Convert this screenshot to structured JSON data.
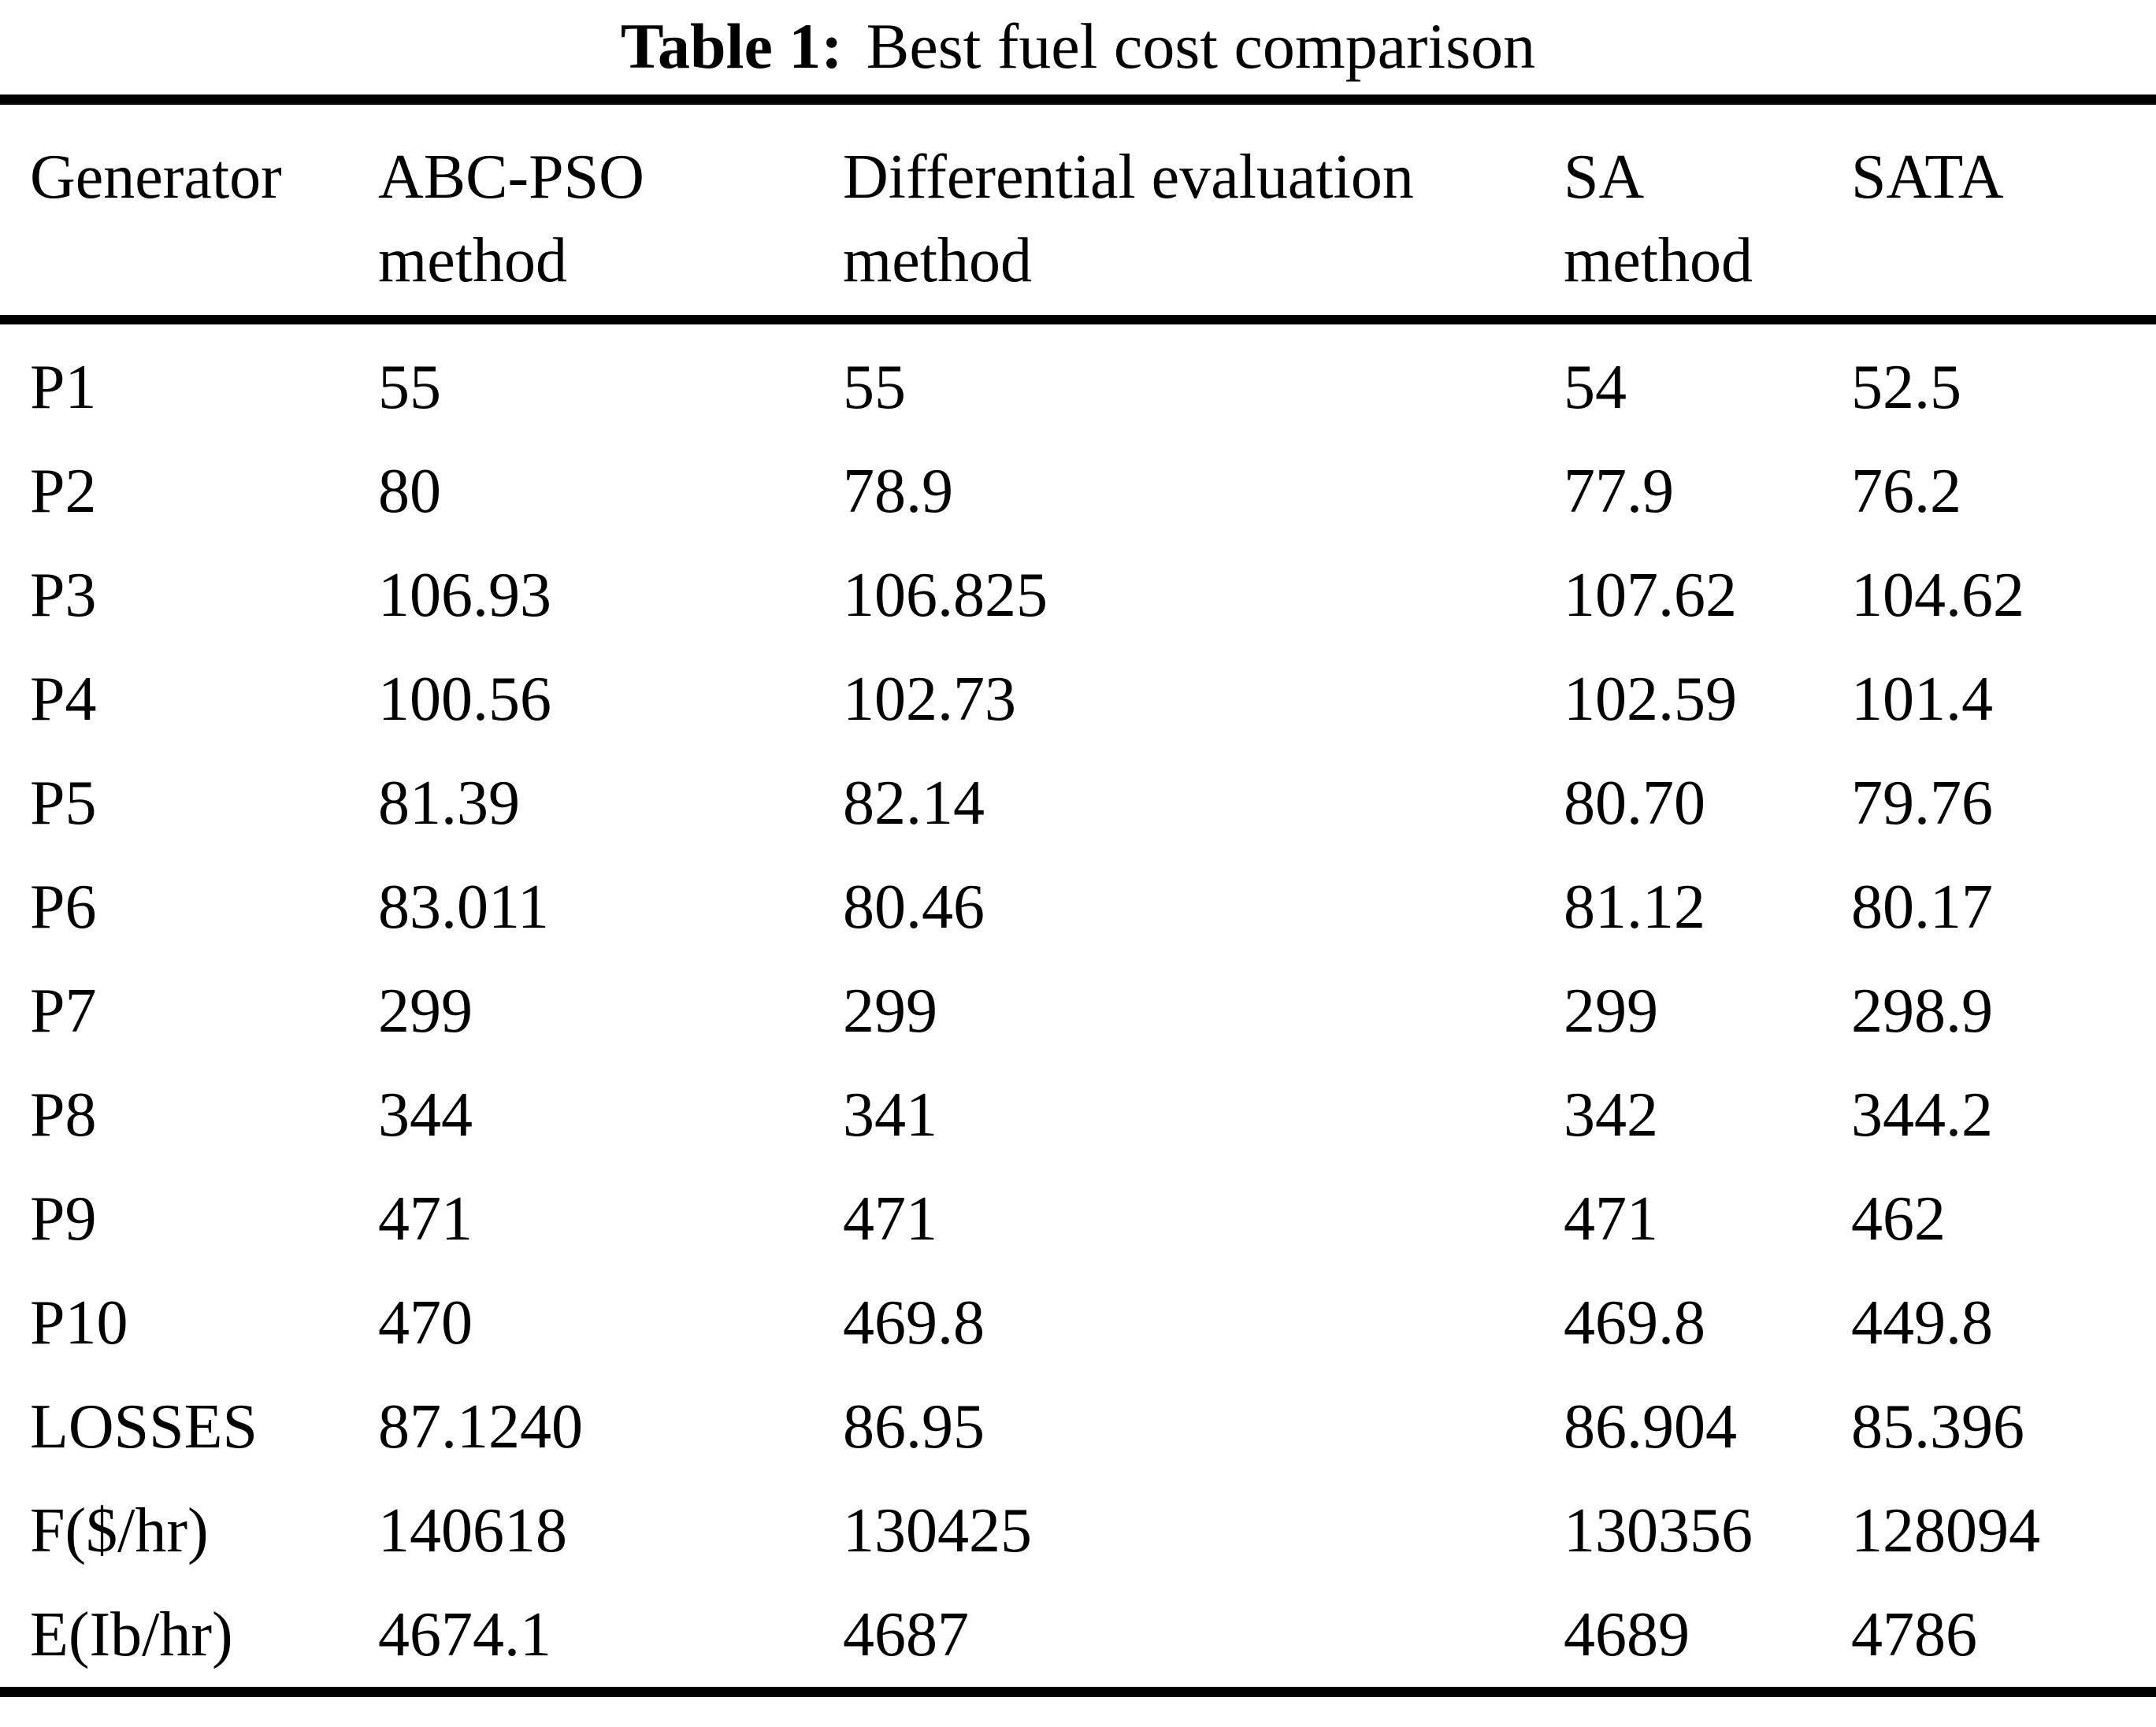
{
  "title": {
    "label": "Table 1:",
    "caption": "Best fuel cost comparison"
  },
  "table": {
    "headers": [
      {
        "line1": "Generator",
        "line2": ""
      },
      {
        "line1": "ABC-PSO",
        "line2": "method"
      },
      {
        "line1": "Differential evaluation",
        "line2": "method"
      },
      {
        "line1": "SA",
        "line2": "method"
      },
      {
        "line1": "SATA",
        "line2": ""
      }
    ],
    "rows": [
      {
        "label": "P1",
        "values": [
          "55",
          "55",
          "54",
          "52.5"
        ]
      },
      {
        "label": "P2",
        "values": [
          "80",
          "78.9",
          "77.9",
          "76.2"
        ]
      },
      {
        "label": "P3",
        "values": [
          "106.93",
          "106.825",
          "107.62",
          "104.62"
        ]
      },
      {
        "label": "P4",
        "values": [
          "100.56",
          "102.73",
          "102.59",
          "101.4"
        ]
      },
      {
        "label": "P5",
        "values": [
          "81.39",
          "82.14",
          "80.70",
          "79.76"
        ]
      },
      {
        "label": "P6",
        "values": [
          "83.011",
          "80.46",
          "81.12",
          "80.17"
        ]
      },
      {
        "label": "P7",
        "values": [
          "299",
          "299",
          "299",
          "298.9"
        ]
      },
      {
        "label": "P8",
        "values": [
          "344",
          "341",
          "342",
          "344.2"
        ]
      },
      {
        "label": "P9",
        "values": [
          "471",
          "471",
          "471",
          "462"
        ]
      },
      {
        "label": "P10",
        "values": [
          "470",
          "469.8",
          "469.8",
          "449.8"
        ]
      },
      {
        "label": "LOSSES",
        "values": [
          "87.1240",
          "86.95",
          "86.904",
          "85.396"
        ]
      },
      {
        "label": "F($/hr)",
        "values": [
          "140618",
          "130425",
          "130356",
          "128094"
        ]
      },
      {
        "label": "E(Ib/hr)",
        "values": [
          "4674.1",
          "4687",
          "4689",
          "4786"
        ]
      }
    ],
    "column_keys": [
      "generator",
      "abc-pso",
      "differential-evaluation",
      "sa",
      "sata"
    ]
  }
}
